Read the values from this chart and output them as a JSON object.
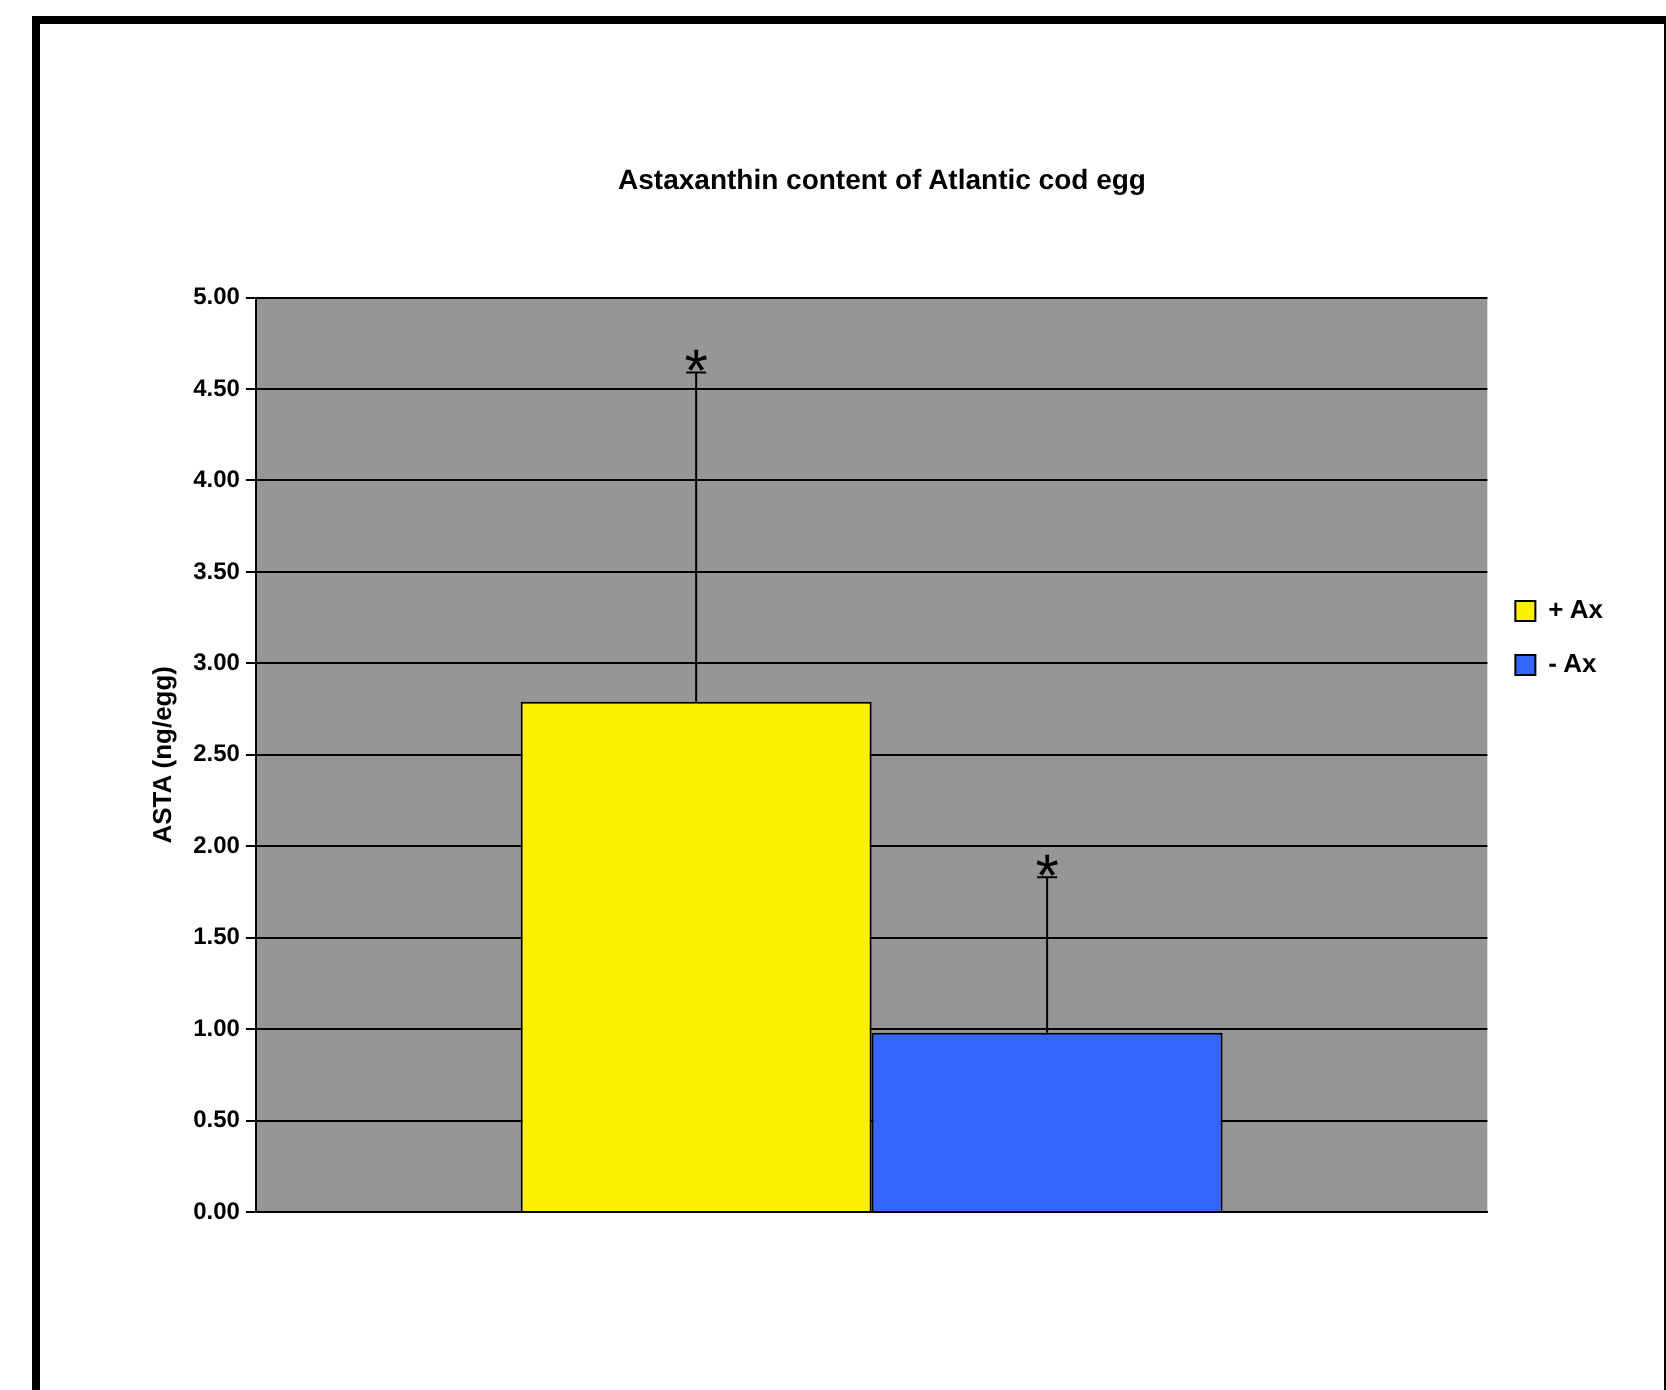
{
  "chart_data": {
    "type": "bar",
    "title": "Astaxanthin content of Atlantic cod egg",
    "ylabel": "ASTA (ng/egg)",
    "categories": [
      null
    ],
    "series": [
      {
        "name": "+ Ax",
        "color": "#fbf000",
        "values": [
          2.79
        ],
        "errors": [
          [
            2.79,
            4.59
          ]
        ]
      },
      {
        "name": "- Ax",
        "color": "#3366ff",
        "values": [
          0.98
        ],
        "errors": [
          [
            0.98,
            1.83
          ]
        ]
      }
    ],
    "ylim": [
      0,
      5
    ],
    "yticks": [
      {
        "value": 0,
        "label": "0.00"
      },
      {
        "value": 0.5,
        "label": "0.50"
      },
      {
        "value": 1,
        "label": "1.00"
      },
      {
        "value": 1.5,
        "label": "1.50"
      },
      {
        "value": 2,
        "label": "2.00"
      },
      {
        "value": 2.5,
        "label": "2.50"
      },
      {
        "value": 3,
        "label": "3.00"
      },
      {
        "value": 3.5,
        "label": "3.50"
      },
      {
        "value": 4,
        "label": "4.00"
      },
      {
        "value": 4.5,
        "label": "4.50"
      },
      {
        "value": 5,
        "label": "5.00"
      }
    ],
    "grid": "y",
    "legend": "right",
    "annotations": [
      {
        "text": "*",
        "y": 4.59
      },
      {
        "text": "*",
        "y": 1.83
      }
    ]
  }
}
